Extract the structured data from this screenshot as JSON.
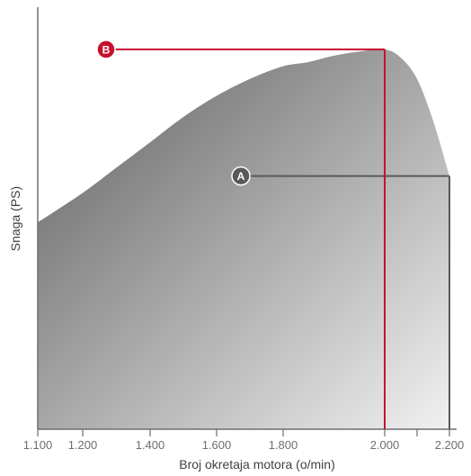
{
  "chart_data": {
    "type": "area",
    "xlabel": "Broj okretaja motora (o/min)",
    "ylabel": "Snaga (PS)",
    "x_ticks": [
      {
        "value": 1100,
        "label": "1.100"
      },
      {
        "value": 1200,
        "label": "1.200"
      },
      {
        "value": 1400,
        "label": "1.400"
      },
      {
        "value": 1600,
        "label": "1.600"
      },
      {
        "value": 1800,
        "label": "1.800"
      },
      {
        "value": 2000,
        "label": "2.000"
      },
      {
        "value": 2200,
        "label": "2.200"
      }
    ],
    "y_axis_ticks": "none",
    "fill_gradient": {
      "start": "#5e5e60",
      "end": "#f1f1f2"
    },
    "series": [
      {
        "x": [
          1100,
          1200,
          1300,
          1400,
          1500,
          1600,
          1700,
          1800,
          1850,
          1900,
          1950,
          2000,
          2050,
          2100,
          2150,
          2200
        ],
        "values": [
          0.49,
          0.56,
          0.62,
          0.68,
          0.74,
          0.79,
          0.83,
          0.86,
          0.87,
          0.885,
          0.895,
          0.9,
          0.88,
          0.83,
          0.73,
          0.6
        ]
      }
    ],
    "markers": [
      {
        "label": "A",
        "x": 2200,
        "y": 0.6,
        "color": "#58595b"
      },
      {
        "label": "B",
        "x": 2000,
        "y": 0.9,
        "color": "#c8102e"
      }
    ]
  }
}
